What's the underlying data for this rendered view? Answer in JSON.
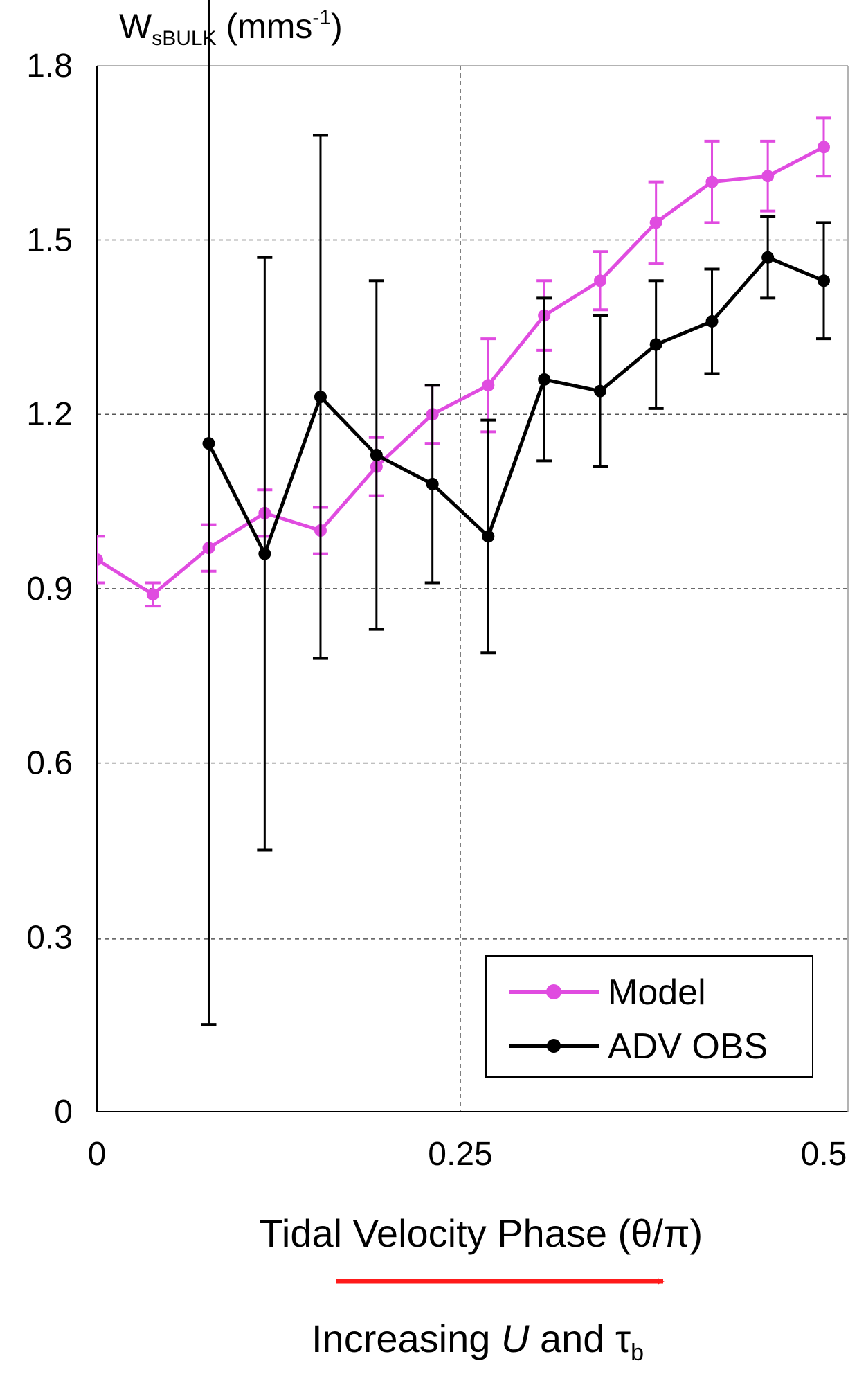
{
  "chart_data": {
    "type": "line",
    "ylabel": {
      "main": "W",
      "sub": "sBULK",
      "unit_pre": " (mms",
      "unit_sup": "-1",
      "unit_post": ")"
    },
    "xlabel": "Tidal Velocity Phase (θ/π)",
    "annotation": {
      "pre": "Increasing ",
      "u": "U",
      "mid": " and τ",
      "sub": "b"
    },
    "xlim": [
      0,
      0.5
    ],
    "ylim": [
      0,
      1.8
    ],
    "x_ticks": [
      "0",
      "0.25",
      "0.5"
    ],
    "x_tick_values": [
      0,
      0.25,
      0.5
    ],
    "y_ticks": [
      "0",
      "0.3",
      "0.6",
      "0.9",
      "1.2",
      "1.5",
      "1.8"
    ],
    "y_tick_values": [
      0,
      0.3,
      0.6,
      0.9,
      1.2,
      1.5,
      1.8
    ],
    "grid": {
      "horizontal": [
        0.297,
        0.6,
        0.9,
        1.2,
        1.5
      ],
      "vertical": [
        0.25
      ]
    },
    "legend_position": "bottom-right",
    "series": [
      {
        "name": "Model",
        "color": "#e04ce0",
        "x": [
          0,
          0.0385,
          0.0769,
          0.1154,
          0.1538,
          0.1923,
          0.2308,
          0.2692,
          0.3077,
          0.3462,
          0.3846,
          0.4231,
          0.4615,
          0.5
        ],
        "y": [
          0.95,
          0.89,
          0.97,
          1.03,
          1.0,
          1.11,
          1.2,
          1.25,
          1.37,
          1.43,
          1.53,
          1.6,
          1.61,
          1.66
        ],
        "err": [
          0.04,
          0.02,
          0.04,
          0.04,
          0.04,
          0.05,
          0.05,
          0.08,
          0.06,
          0.05,
          0.07,
          0.07,
          0.06,
          0.05
        ]
      },
      {
        "name": "ADV OBS",
        "color": "#000000",
        "x": [
          0.0769,
          0.1154,
          0.1538,
          0.1923,
          0.2308,
          0.2692,
          0.3077,
          0.3462,
          0.3846,
          0.4231,
          0.4615,
          0.5
        ],
        "y": [
          1.15,
          0.96,
          1.23,
          1.13,
          1.08,
          0.99,
          1.26,
          1.24,
          1.32,
          1.36,
          1.47,
          1.43
        ],
        "err": [
          1.0,
          0.51,
          0.45,
          0.3,
          0.17,
          0.2,
          0.14,
          0.13,
          0.11,
          0.09,
          0.07,
          0.1
        ]
      }
    ]
  }
}
